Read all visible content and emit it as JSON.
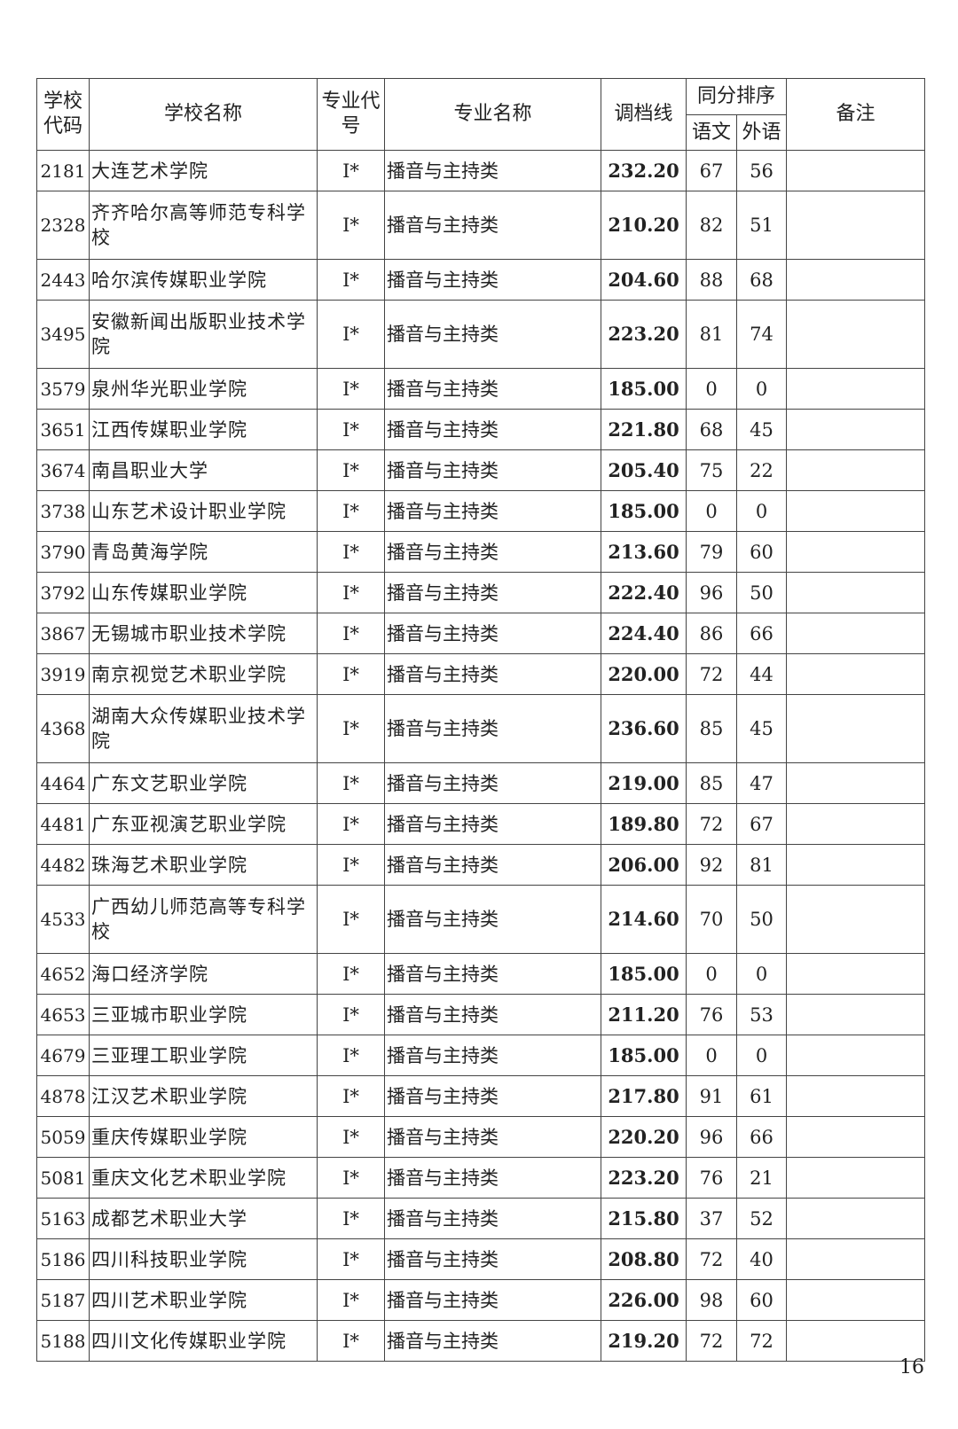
{
  "table": {
    "headers": {
      "school_code": "学校代码",
      "school_name": "学校名称",
      "major_code": "专业代号",
      "major_name": "专业名称",
      "cutoff": "调档线",
      "tie_rank": "同分排序",
      "chinese": "语文",
      "foreign": "外语",
      "remarks": "备注"
    },
    "rows": [
      {
        "code": "2181",
        "name": "大连艺术学院",
        "major_code": "I*",
        "major": "播音与主持类",
        "score": "232.20",
        "chinese": "67",
        "foreign": "56",
        "note": ""
      },
      {
        "code": "2328",
        "name": "齐齐哈尔高等师范专科学校",
        "major_code": "I*",
        "major": "播音与主持类",
        "score": "210.20",
        "chinese": "82",
        "foreign": "51",
        "note": ""
      },
      {
        "code": "2443",
        "name": "哈尔滨传媒职业学院",
        "major_code": "I*",
        "major": "播音与主持类",
        "score": "204.60",
        "chinese": "88",
        "foreign": "68",
        "note": ""
      },
      {
        "code": "3495",
        "name": "安徽新闻出版职业技术学院",
        "major_code": "I*",
        "major": "播音与主持类",
        "score": "223.20",
        "chinese": "81",
        "foreign": "74",
        "note": ""
      },
      {
        "code": "3579",
        "name": "泉州华光职业学院",
        "major_code": "I*",
        "major": "播音与主持类",
        "score": "185.00",
        "chinese": "0",
        "foreign": "0",
        "note": ""
      },
      {
        "code": "3651",
        "name": "江西传媒职业学院",
        "major_code": "I*",
        "major": "播音与主持类",
        "score": "221.80",
        "chinese": "68",
        "foreign": "45",
        "note": ""
      },
      {
        "code": "3674",
        "name": "南昌职业大学",
        "major_code": "I*",
        "major": "播音与主持类",
        "score": "205.40",
        "chinese": "75",
        "foreign": "22",
        "note": ""
      },
      {
        "code": "3738",
        "name": "山东艺术设计职业学院",
        "major_code": "I*",
        "major": "播音与主持类",
        "score": "185.00",
        "chinese": "0",
        "foreign": "0",
        "note": ""
      },
      {
        "code": "3790",
        "name": "青岛黄海学院",
        "major_code": "I*",
        "major": "播音与主持类",
        "score": "213.60",
        "chinese": "79",
        "foreign": "60",
        "note": ""
      },
      {
        "code": "3792",
        "name": "山东传媒职业学院",
        "major_code": "I*",
        "major": "播音与主持类",
        "score": "222.40",
        "chinese": "96",
        "foreign": "50",
        "note": ""
      },
      {
        "code": "3867",
        "name": "无锡城市职业技术学院",
        "major_code": "I*",
        "major": "播音与主持类",
        "score": "224.40",
        "chinese": "86",
        "foreign": "66",
        "note": ""
      },
      {
        "code": "3919",
        "name": "南京视觉艺术职业学院",
        "major_code": "I*",
        "major": "播音与主持类",
        "score": "220.00",
        "chinese": "72",
        "foreign": "44",
        "note": ""
      },
      {
        "code": "4368",
        "name": "湖南大众传媒职业技术学院",
        "major_code": "I*",
        "major": "播音与主持类",
        "score": "236.60",
        "chinese": "85",
        "foreign": "45",
        "note": ""
      },
      {
        "code": "4464",
        "name": "广东文艺职业学院",
        "major_code": "I*",
        "major": "播音与主持类",
        "score": "219.00",
        "chinese": "85",
        "foreign": "47",
        "note": ""
      },
      {
        "code": "4481",
        "name": "广东亚视演艺职业学院",
        "major_code": "I*",
        "major": "播音与主持类",
        "score": "189.80",
        "chinese": "72",
        "foreign": "67",
        "note": ""
      },
      {
        "code": "4482",
        "name": "珠海艺术职业学院",
        "major_code": "I*",
        "major": "播音与主持类",
        "score": "206.00",
        "chinese": "92",
        "foreign": "81",
        "note": ""
      },
      {
        "code": "4533",
        "name": "广西幼儿师范高等专科学校",
        "major_code": "I*",
        "major": "播音与主持类",
        "score": "214.60",
        "chinese": "70",
        "foreign": "50",
        "note": ""
      },
      {
        "code": "4652",
        "name": "海口经济学院",
        "major_code": "I*",
        "major": "播音与主持类",
        "score": "185.00",
        "chinese": "0",
        "foreign": "0",
        "note": ""
      },
      {
        "code": "4653",
        "name": "三亚城市职业学院",
        "major_code": "I*",
        "major": "播音与主持类",
        "score": "211.20",
        "chinese": "76",
        "foreign": "53",
        "note": ""
      },
      {
        "code": "4679",
        "name": "三亚理工职业学院",
        "major_code": "I*",
        "major": "播音与主持类",
        "score": "185.00",
        "chinese": "0",
        "foreign": "0",
        "note": ""
      },
      {
        "code": "4878",
        "name": "江汉艺术职业学院",
        "major_code": "I*",
        "major": "播音与主持类",
        "score": "217.80",
        "chinese": "91",
        "foreign": "61",
        "note": ""
      },
      {
        "code": "5059",
        "name": "重庆传媒职业学院",
        "major_code": "I*",
        "major": "播音与主持类",
        "score": "220.20",
        "chinese": "96",
        "foreign": "66",
        "note": ""
      },
      {
        "code": "5081",
        "name": "重庆文化艺术职业学院",
        "major_code": "I*",
        "major": "播音与主持类",
        "score": "223.20",
        "chinese": "76",
        "foreign": "21",
        "note": ""
      },
      {
        "code": "5163",
        "name": "成都艺术职业大学",
        "major_code": "I*",
        "major": "播音与主持类",
        "score": "215.80",
        "chinese": "37",
        "foreign": "52",
        "note": ""
      },
      {
        "code": "5186",
        "name": "四川科技职业学院",
        "major_code": "I*",
        "major": "播音与主持类",
        "score": "208.80",
        "chinese": "72",
        "foreign": "40",
        "note": ""
      },
      {
        "code": "5187",
        "name": "四川艺术职业学院",
        "major_code": "I*",
        "major": "播音与主持类",
        "score": "226.00",
        "chinese": "98",
        "foreign": "60",
        "note": ""
      },
      {
        "code": "5188",
        "name": "四川文化传媒职业学院",
        "major_code": "I*",
        "major": "播音与主持类",
        "score": "219.20",
        "chinese": "72",
        "foreign": "72",
        "note": ""
      }
    ]
  },
  "page_number": "16"
}
